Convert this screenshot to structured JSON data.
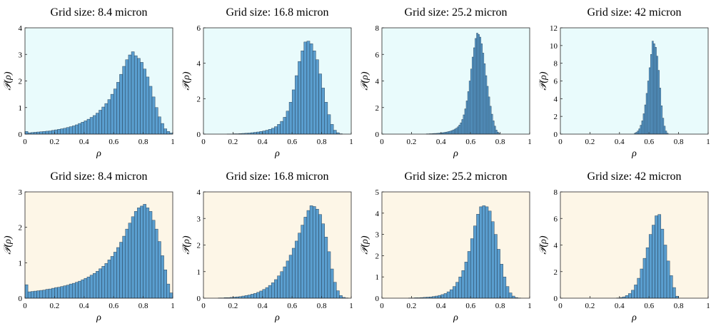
{
  "figure": {
    "bar_color": "#5a9ecf",
    "bar_edge": "#1f3346",
    "row_backgrounds": [
      "#e9fbfc",
      "#fdf6e7"
    ]
  },
  "chart_data": [
    {
      "type": "bar",
      "title": "Grid size: 8.4 micron",
      "xlabel": "ρ",
      "ylabel": "𝒫(ρ)",
      "xlim": [
        0,
        1
      ],
      "ylim": [
        0,
        4
      ],
      "xticks": [
        "0",
        "0.2",
        "0.4",
        "0.6",
        "0.8",
        "1"
      ],
      "yticks": [
        "0",
        "1",
        "2",
        "3",
        "4"
      ],
      "grid": false,
      "bin_width": 0.02,
      "x": [
        0.01,
        0.03,
        0.05,
        0.07,
        0.09,
        0.11,
        0.13,
        0.15,
        0.17,
        0.19,
        0.21,
        0.23,
        0.25,
        0.27,
        0.29,
        0.31,
        0.33,
        0.35,
        0.37,
        0.39,
        0.41,
        0.43,
        0.45,
        0.47,
        0.49,
        0.51,
        0.53,
        0.55,
        0.57,
        0.59,
        0.61,
        0.63,
        0.65,
        0.67,
        0.69,
        0.71,
        0.73,
        0.75,
        0.77,
        0.79,
        0.81,
        0.83,
        0.85,
        0.87,
        0.89,
        0.91,
        0.93,
        0.95,
        0.97,
        0.99
      ],
      "values": [
        0.1,
        0.05,
        0.06,
        0.07,
        0.08,
        0.09,
        0.1,
        0.11,
        0.12,
        0.14,
        0.16,
        0.18,
        0.2,
        0.22,
        0.25,
        0.28,
        0.31,
        0.35,
        0.4,
        0.45,
        0.5,
        0.56,
        0.63,
        0.7,
        0.79,
        0.9,
        1.02,
        1.15,
        1.3,
        1.5,
        1.7,
        1.95,
        2.25,
        2.55,
        2.8,
        2.98,
        3.1,
        2.95,
        2.85,
        2.7,
        2.45,
        2.15,
        1.8,
        1.4,
        1.0,
        0.65,
        0.4,
        0.2,
        0.1,
        0.04
      ]
    },
    {
      "type": "bar",
      "title": "Grid size: 16.8 micron",
      "xlabel": "ρ",
      "ylabel": "𝒫(ρ)",
      "xlim": [
        0,
        1
      ],
      "ylim": [
        0,
        6
      ],
      "xticks": [
        "0",
        "0.2",
        "0.4",
        "0.6",
        "0.8",
        "1"
      ],
      "yticks": [
        "0",
        "2",
        "4",
        "6"
      ],
      "grid": false,
      "bin_width": 0.02,
      "x": [
        0.01,
        0.03,
        0.05,
        0.07,
        0.09,
        0.11,
        0.13,
        0.15,
        0.17,
        0.19,
        0.21,
        0.23,
        0.25,
        0.27,
        0.29,
        0.31,
        0.33,
        0.35,
        0.37,
        0.39,
        0.41,
        0.43,
        0.45,
        0.47,
        0.49,
        0.51,
        0.53,
        0.55,
        0.57,
        0.59,
        0.61,
        0.63,
        0.65,
        0.67,
        0.69,
        0.71,
        0.73,
        0.75,
        0.77,
        0.79,
        0.81,
        0.83,
        0.85,
        0.87,
        0.89,
        0.91,
        0.93,
        0.95,
        0.97,
        0.99
      ],
      "values": [
        0,
        0,
        0,
        0,
        0,
        0,
        0,
        0,
        0.01,
        0.01,
        0.02,
        0.02,
        0.03,
        0.04,
        0.05,
        0.06,
        0.08,
        0.1,
        0.12,
        0.15,
        0.18,
        0.22,
        0.27,
        0.33,
        0.42,
        0.55,
        0.72,
        0.95,
        1.3,
        1.8,
        2.5,
        3.3,
        4.1,
        4.7,
        5.2,
        5.25,
        5.1,
        4.7,
        4.2,
        3.4,
        2.6,
        1.8,
        1.1,
        0.55,
        0.22,
        0.08,
        0.02,
        0,
        0,
        0
      ]
    },
    {
      "type": "bar",
      "title": "Grid size: 25.2 micron",
      "xlabel": "ρ",
      "ylabel": "𝒫(ρ)",
      "xlim": [
        0,
        1
      ],
      "ylim": [
        0,
        8
      ],
      "xticks": [
        "0",
        "0.2",
        "0.4",
        "0.6",
        "0.8",
        "1"
      ],
      "yticks": [
        "0",
        "2",
        "4",
        "6",
        "8"
      ],
      "grid": false,
      "bin_width": 0.01,
      "x": [
        0.305,
        0.315,
        0.325,
        0.335,
        0.345,
        0.355,
        0.365,
        0.375,
        0.385,
        0.395,
        0.405,
        0.415,
        0.425,
        0.435,
        0.445,
        0.455,
        0.465,
        0.475,
        0.485,
        0.495,
        0.505,
        0.515,
        0.525,
        0.535,
        0.545,
        0.555,
        0.565,
        0.575,
        0.585,
        0.595,
        0.605,
        0.615,
        0.625,
        0.635,
        0.645,
        0.655,
        0.665,
        0.675,
        0.685,
        0.695,
        0.705,
        0.715,
        0.725,
        0.735,
        0.745,
        0.755,
        0.765,
        0.775,
        0.785,
        0.795
      ],
      "values": [
        0.02,
        0.02,
        0.03,
        0.03,
        0.04,
        0.05,
        0.05,
        0.06,
        0.07,
        0.08,
        0.1,
        0.11,
        0.13,
        0.15,
        0.17,
        0.2,
        0.23,
        0.27,
        0.32,
        0.38,
        0.45,
        0.55,
        0.68,
        0.85,
        1.1,
        1.45,
        1.9,
        2.5,
        3.2,
        4.0,
        4.9,
        5.8,
        6.5,
        7.2,
        7.6,
        7.5,
        7.3,
        6.8,
        6.1,
        5.3,
        4.4,
        3.6,
        2.8,
        2.1,
        1.5,
        1.0,
        0.6,
        0.3,
        0.15,
        0.05
      ]
    },
    {
      "type": "bar",
      "title": "Grid size: 42 micron",
      "xlabel": "ρ",
      "ylabel": "𝒫(ρ)",
      "xlim": [
        0,
        1
      ],
      "ylim": [
        0,
        12
      ],
      "xticks": [
        "0",
        "0.2",
        "0.4",
        "0.6",
        "0.8",
        "1"
      ],
      "yticks": [
        "0",
        "2",
        "4",
        "6",
        "8",
        "10",
        "12"
      ],
      "grid": false,
      "bin_width": 0.01,
      "x": [
        0.505,
        0.515,
        0.525,
        0.535,
        0.545,
        0.555,
        0.565,
        0.575,
        0.585,
        0.595,
        0.605,
        0.615,
        0.625,
        0.635,
        0.645,
        0.655,
        0.665,
        0.675,
        0.685,
        0.695,
        0.705,
        0.715,
        0.725
      ],
      "values": [
        0.1,
        0.2,
        0.35,
        0.6,
        1.0,
        1.5,
        2.3,
        3.3,
        4.6,
        6.0,
        7.5,
        9.0,
        10.5,
        10.2,
        9.8,
        8.8,
        7.2,
        5.2,
        3.2,
        1.8,
        0.9,
        0.35,
        0.1
      ]
    },
    {
      "type": "bar",
      "title": "Grid size: 8.4 micron",
      "xlabel": "ρ",
      "ylabel": "𝒫(ρ)",
      "xlim": [
        0,
        1
      ],
      "ylim": [
        0,
        3
      ],
      "xticks": [
        "0",
        "0.2",
        "0.4",
        "0.6",
        "0.8",
        "1"
      ],
      "yticks": [
        "0",
        "1",
        "2",
        "3"
      ],
      "grid": false,
      "bin_width": 0.02,
      "x": [
        0.01,
        0.03,
        0.05,
        0.07,
        0.09,
        0.11,
        0.13,
        0.15,
        0.17,
        0.19,
        0.21,
        0.23,
        0.25,
        0.27,
        0.29,
        0.31,
        0.33,
        0.35,
        0.37,
        0.39,
        0.41,
        0.43,
        0.45,
        0.47,
        0.49,
        0.51,
        0.53,
        0.55,
        0.57,
        0.59,
        0.61,
        0.63,
        0.65,
        0.67,
        0.69,
        0.71,
        0.73,
        0.75,
        0.77,
        0.79,
        0.81,
        0.83,
        0.85,
        0.87,
        0.89,
        0.91,
        0.93,
        0.95,
        0.97,
        0.99
      ],
      "values": [
        0.38,
        0.18,
        0.19,
        0.2,
        0.21,
        0.22,
        0.23,
        0.25,
        0.26,
        0.28,
        0.3,
        0.31,
        0.33,
        0.35,
        0.37,
        0.4,
        0.42,
        0.45,
        0.48,
        0.52,
        0.56,
        0.6,
        0.65,
        0.7,
        0.76,
        0.83,
        0.9,
        0.98,
        1.08,
        1.18,
        1.3,
        1.43,
        1.58,
        1.75,
        1.95,
        2.12,
        2.3,
        2.45,
        2.55,
        2.6,
        2.65,
        2.55,
        2.45,
        2.2,
        1.95,
        1.6,
        1.2,
        0.8,
        0.4,
        0.15
      ]
    },
    {
      "type": "bar",
      "title": "Grid size: 16.8 micron",
      "xlabel": "ρ",
      "ylabel": "𝒫(ρ)",
      "xlim": [
        0,
        1
      ],
      "ylim": [
        0,
        4
      ],
      "xticks": [
        "0",
        "0.2",
        "0.4",
        "0.6",
        "0.8",
        "1"
      ],
      "yticks": [
        "0",
        "1",
        "2",
        "3",
        "4"
      ],
      "grid": false,
      "bin_width": 0.02,
      "x": [
        0.01,
        0.03,
        0.05,
        0.07,
        0.09,
        0.11,
        0.13,
        0.15,
        0.17,
        0.19,
        0.21,
        0.23,
        0.25,
        0.27,
        0.29,
        0.31,
        0.33,
        0.35,
        0.37,
        0.39,
        0.41,
        0.43,
        0.45,
        0.47,
        0.49,
        0.51,
        0.53,
        0.55,
        0.57,
        0.59,
        0.61,
        0.63,
        0.65,
        0.67,
        0.69,
        0.71,
        0.73,
        0.75,
        0.77,
        0.79,
        0.81,
        0.83,
        0.85,
        0.87,
        0.89,
        0.91,
        0.93,
        0.95,
        0.97,
        0.99
      ],
      "values": [
        0,
        0,
        0,
        0,
        0,
        0.01,
        0.01,
        0.02,
        0.02,
        0.03,
        0.04,
        0.05,
        0.06,
        0.08,
        0.1,
        0.12,
        0.15,
        0.18,
        0.22,
        0.27,
        0.33,
        0.4,
        0.48,
        0.58,
        0.7,
        0.84,
        1.0,
        1.18,
        1.4,
        1.62,
        1.88,
        2.15,
        2.45,
        2.75,
        3.05,
        3.3,
        3.48,
        3.45,
        3.35,
        3.15,
        2.8,
        2.3,
        1.75,
        1.1,
        0.6,
        0.28,
        0.1,
        0.03,
        0.01,
        0
      ]
    },
    {
      "type": "bar",
      "title": "Grid size: 25.2 micron",
      "xlabel": "ρ",
      "ylabel": "𝒫(ρ)",
      "xlim": [
        0,
        1
      ],
      "ylim": [
        0,
        5
      ],
      "xticks": [
        "0",
        "0.2",
        "0.4",
        "0.6",
        "0.8",
        "1"
      ],
      "yticks": [
        "0",
        "1",
        "2",
        "3",
        "4",
        "5"
      ],
      "grid": false,
      "bin_width": 0.02,
      "x": [
        0.01,
        0.03,
        0.05,
        0.07,
        0.09,
        0.11,
        0.13,
        0.15,
        0.17,
        0.19,
        0.21,
        0.23,
        0.25,
        0.27,
        0.29,
        0.31,
        0.33,
        0.35,
        0.37,
        0.39,
        0.41,
        0.43,
        0.45,
        0.47,
        0.49,
        0.51,
        0.53,
        0.55,
        0.57,
        0.59,
        0.61,
        0.63,
        0.65,
        0.67,
        0.69,
        0.71,
        0.73,
        0.75,
        0.77,
        0.79,
        0.81,
        0.83,
        0.85,
        0.87,
        0.89,
        0.91,
        0.93,
        0.95,
        0.97,
        0.99
      ],
      "values": [
        0,
        0,
        0,
        0,
        0,
        0,
        0,
        0,
        0,
        0.01,
        0.01,
        0.02,
        0.02,
        0.03,
        0.04,
        0.05,
        0.06,
        0.08,
        0.1,
        0.13,
        0.17,
        0.22,
        0.3,
        0.4,
        0.55,
        0.75,
        1.0,
        1.3,
        1.7,
        2.2,
        2.8,
        3.4,
        3.95,
        4.3,
        4.35,
        4.3,
        4.1,
        3.6,
        3.0,
        2.3,
        1.6,
        1.0,
        0.55,
        0.25,
        0.1,
        0.03,
        0.01,
        0,
        0,
        0
      ]
    },
    {
      "type": "bar",
      "title": "Grid size: 42 micron",
      "xlabel": "ρ",
      "ylabel": "𝒫(ρ)",
      "xlim": [
        0,
        1
      ],
      "ylim": [
        0,
        8
      ],
      "xticks": [
        "0",
        "0.2",
        "0.4",
        "0.6",
        "0.8",
        "1"
      ],
      "yticks": [
        "0",
        "2",
        "4",
        "6",
        "8"
      ],
      "grid": false,
      "bin_width": 0.02,
      "x": [
        0.39,
        0.41,
        0.43,
        0.45,
        0.47,
        0.49,
        0.51,
        0.53,
        0.55,
        0.57,
        0.59,
        0.61,
        0.63,
        0.65,
        0.67,
        0.69,
        0.71,
        0.73,
        0.75,
        0.77,
        0.79
      ],
      "values": [
        0.02,
        0.05,
        0.1,
        0.2,
        0.35,
        0.6,
        1.0,
        1.5,
        2.2,
        3.0,
        3.8,
        4.8,
        5.5,
        6.2,
        6.3,
        5.2,
        4.0,
        2.8,
        1.7,
        0.8,
        0.15
      ]
    }
  ]
}
